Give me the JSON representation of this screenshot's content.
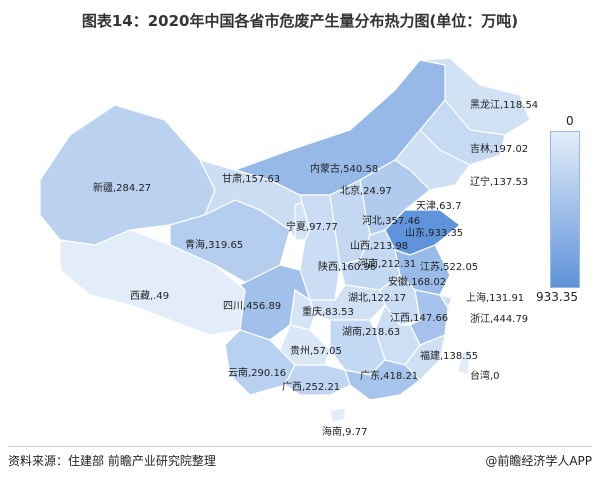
{
  "title": "图表14：2020年中国各省市危废产生量分布热力图(单位：万吨)",
  "legend": {
    "min": "0",
    "max": "933.35",
    "color_low": "#e2edf9",
    "color_high": "#5f93db"
  },
  "provinces": [
    {
      "name": "黑龙江",
      "label": "黑龙江,118.54",
      "value": 118.54
    },
    {
      "name": "吉林",
      "label": "吉林,197.02",
      "value": 197.02
    },
    {
      "name": "辽宁",
      "label": "辽宁,137.53",
      "value": 137.53
    },
    {
      "name": "新疆",
      "label": "新疆,284.27",
      "value": 284.27
    },
    {
      "name": "内蒙古",
      "label": "内蒙古,540.58",
      "value": 540.58
    },
    {
      "name": "甘肃",
      "label": "甘肃,157.63",
      "value": 157.63
    },
    {
      "name": "北京",
      "label": "北京,24.97",
      "value": 24.97
    },
    {
      "name": "天津",
      "label": "天津,63.7",
      "value": 63.7
    },
    {
      "name": "宁夏",
      "label": "宁夏,97.77",
      "value": 97.77
    },
    {
      "name": "河北",
      "label": "河北,357.46",
      "value": 357.46
    },
    {
      "name": "山西",
      "label": "山西,213.98",
      "value": 213.98
    },
    {
      "name": "山东",
      "label": "山东,933.35",
      "value": 933.35
    },
    {
      "name": "青海",
      "label": "青海,319.65",
      "value": 319.65
    },
    {
      "name": "陕西",
      "label": "陕西,160.96",
      "value": 160.96
    },
    {
      "name": "河南",
      "label": "河南,212.31",
      "value": 212.31
    },
    {
      "name": "江苏",
      "label": "江苏,522.05",
      "value": 522.05
    },
    {
      "name": "安徽",
      "label": "安徽,168.02",
      "value": 168.02
    },
    {
      "name": "西藏",
      "label": "西藏,.49",
      "value": 0.49
    },
    {
      "name": "上海",
      "label": "上海,131.91",
      "value": 131.91
    },
    {
      "name": "四川",
      "label": "四川,456.89",
      "value": 456.89
    },
    {
      "name": "湖北",
      "label": "湖北,122.17",
      "value": 122.17
    },
    {
      "name": "重庆",
      "label": "重庆,83.53",
      "value": 83.53
    },
    {
      "name": "浙江",
      "label": "浙江,444.79",
      "value": 444.79
    },
    {
      "name": "江西",
      "label": "江西,147.66",
      "value": 147.66
    },
    {
      "name": "贵州",
      "label": "贵州,57.05",
      "value": 57.05
    },
    {
      "name": "湖南",
      "label": "湖南,218.63",
      "value": 218.63
    },
    {
      "name": "福建",
      "label": "福建,138.55",
      "value": 138.55
    },
    {
      "name": "云南",
      "label": "云南,290.16",
      "value": 290.16
    },
    {
      "name": "广西",
      "label": "广西,252.21",
      "value": 252.21
    },
    {
      "name": "广东",
      "label": "广东,418.21",
      "value": 418.21
    },
    {
      "name": "台湾",
      "label": "台湾,0",
      "value": 0
    },
    {
      "name": "海南",
      "label": "海南,9.77",
      "value": 9.77
    }
  ],
  "footer": {
    "source": "资料来源：住建部 前瞻产业研究院整理",
    "credit": "@前瞻经济学人APP"
  }
}
